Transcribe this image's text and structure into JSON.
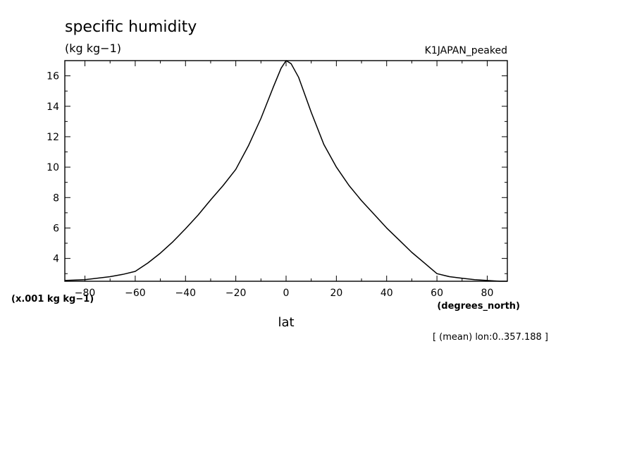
{
  "chart_data": {
    "type": "line",
    "title": "specific humidity",
    "units": "(kg kg−1)",
    "case_name": "K1JAPAN_peaked",
    "ylabel_scale": "(x.001 kg kg−1)",
    "xlabel": "lat",
    "xunits": "(degrees_north)",
    "note": "[ (mean) lon:0..357.188 ]",
    "xlim": [
      -88,
      88
    ],
    "ylim": [
      2.5,
      17
    ],
    "xticks": [
      -80,
      -60,
      -40,
      -20,
      0,
      20,
      40,
      60,
      80
    ],
    "yticks": [
      4,
      6,
      8,
      10,
      12,
      14,
      16
    ],
    "grid": false,
    "series": [
      {
        "x": [
          -88,
          -80,
          -70,
          -65,
          -60,
          -55,
          -50,
          -45,
          -40,
          -35,
          -30,
          -25,
          -20,
          -15,
          -10,
          -5,
          -2,
          0,
          2,
          5,
          10,
          15,
          20,
          25,
          30,
          35,
          40,
          45,
          50,
          55,
          60,
          65,
          70,
          75,
          80,
          85,
          88
        ],
        "y": [
          2.55,
          2.6,
          2.8,
          2.95,
          3.15,
          3.7,
          4.35,
          5.1,
          5.95,
          6.85,
          7.85,
          8.8,
          9.85,
          11.4,
          13.2,
          15.3,
          16.5,
          17.0,
          16.8,
          15.9,
          13.6,
          11.5,
          10.0,
          8.8,
          7.8,
          6.9,
          6.0,
          5.2,
          4.4,
          3.7,
          3.0,
          2.8,
          2.7,
          2.6,
          2.55,
          2.5,
          2.5
        ]
      }
    ]
  }
}
